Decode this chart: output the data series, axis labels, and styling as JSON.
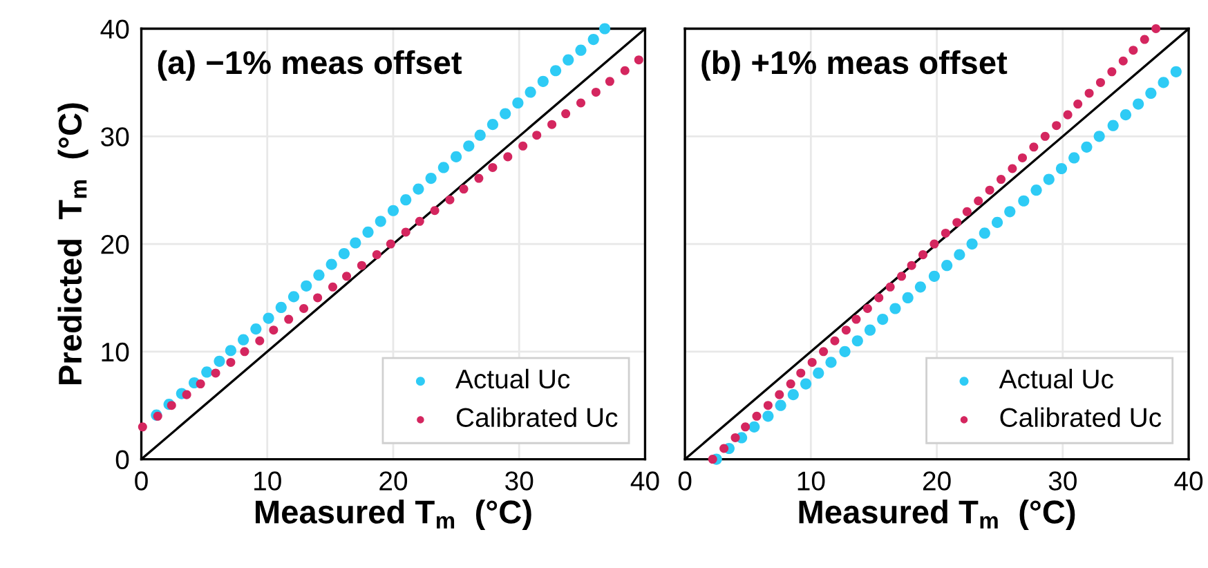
{
  "chart_data": [
    {
      "type": "scatter",
      "title": "(a) −1% meas offset",
      "xlabel": "Measured T$_{m}$  (°C)",
      "ylabel": "Predicted  T$_{m}$  (°C)",
      "xlim": [
        0,
        40
      ],
      "ylim": [
        0,
        40
      ],
      "xticks": [
        0,
        10,
        20,
        30,
        40
      ],
      "yticks": [
        0,
        10,
        20,
        30,
        40
      ],
      "grid": true,
      "legend": "bottom right",
      "series": [
        {
          "name": "Actual Uc",
          "color": "#2ecbf5",
          "marker": "circle",
          "x": [
            1.2,
            2.2,
            3.2,
            4.2,
            5.2,
            6.2,
            7.1,
            8.1,
            9.1,
            10.1,
            11.1,
            12.1,
            13.1,
            14.1,
            15.1,
            16.1,
            17.0,
            18.0,
            19.0,
            20.0,
            21.0,
            22.0,
            23.0,
            24.0,
            25.0,
            26.0,
            26.9,
            27.9,
            28.9,
            29.9,
            30.9,
            31.9,
            32.9,
            33.9,
            34.9,
            35.9,
            36.8
          ],
          "values": [
            4.1,
            5.1,
            6.1,
            7.1,
            8.1,
            9.1,
            10.1,
            11.1,
            12.1,
            13.1,
            14.1,
            15.1,
            16.1,
            17.1,
            18.1,
            19.1,
            20.1,
            21.1,
            22.1,
            23.1,
            24.1,
            25.1,
            26.1,
            27.1,
            28.1,
            29.1,
            30.1,
            31.1,
            32.1,
            33.1,
            34.1,
            35.1,
            36.1,
            37.1,
            38.0,
            39.0,
            40.0
          ]
        },
        {
          "name": "Calibrated Uc",
          "color": "#d4265f",
          "marker": "circle",
          "x": [
            0.1,
            1.3,
            2.4,
            3.6,
            4.7,
            5.9,
            7.1,
            8.2,
            9.4,
            10.5,
            11.7,
            12.9,
            14.0,
            15.2,
            16.3,
            17.5,
            18.7,
            19.8,
            21.0,
            22.1,
            23.3,
            24.5,
            25.6,
            26.8,
            27.9,
            29.1,
            30.3,
            31.4,
            32.6,
            33.7,
            34.9,
            36.1,
            37.2,
            38.4,
            39.5
          ],
          "values": [
            3.0,
            4.0,
            5.0,
            6.0,
            7.0,
            8.0,
            9.0,
            10.0,
            11.0,
            12.0,
            13.0,
            14.0,
            15.0,
            16.0,
            17.0,
            18.0,
            19.0,
            20.0,
            21.1,
            22.1,
            23.1,
            24.1,
            25.1,
            26.1,
            27.1,
            28.1,
            29.1,
            30.1,
            31.1,
            32.1,
            33.1,
            34.1,
            35.1,
            36.1,
            37.1
          ]
        },
        {
          "type": "line",
          "color": "#000000",
          "x": [
            0,
            40
          ],
          "values": [
            0,
            40
          ]
        }
      ]
    },
    {
      "type": "scatter",
      "title": "(b) +1% meas offset",
      "xlabel": "Measured T$_{m}$  (°C)",
      "xlim": [
        0,
        40
      ],
      "ylim": [
        0,
        40
      ],
      "xticks": [
        0,
        10,
        20,
        30,
        40
      ],
      "yticks": [
        0,
        10,
        20,
        30,
        40
      ],
      "tick_labels": "x",
      "grid": true,
      "legend": "bottom right",
      "series": [
        {
          "name": "Actual Uc",
          "color": "#2ecbf5",
          "marker": "circle",
          "x": [
            2.5,
            3.5,
            4.5,
            5.5,
            6.6,
            7.6,
            8.6,
            9.6,
            10.6,
            11.6,
            12.7,
            13.7,
            14.7,
            15.7,
            16.7,
            17.7,
            18.7,
            19.8,
            20.8,
            21.8,
            22.8,
            23.8,
            24.8,
            25.8,
            26.9,
            27.9,
            28.9,
            29.9,
            30.9,
            31.9,
            32.9,
            34.0,
            35.0,
            36.0,
            37.0,
            38.0,
            39.0
          ],
          "values": [
            0,
            1,
            2,
            3,
            4,
            5,
            6,
            7,
            8,
            9,
            10,
            11,
            12,
            13,
            14,
            15,
            16,
            17,
            18,
            19,
            20,
            21,
            22,
            23,
            24,
            25,
            26,
            27,
            28,
            29,
            30,
            31,
            32,
            33,
            34,
            35,
            36
          ]
        },
        {
          "name": "Calibrated Uc",
          "color": "#d4265f",
          "marker": "circle",
          "x": [
            2.2,
            3.1,
            4.0,
            4.8,
            5.7,
            6.6,
            7.5,
            8.4,
            9.2,
            10.1,
            11.0,
            11.9,
            12.8,
            13.6,
            14.5,
            15.4,
            16.3,
            17.2,
            18.0,
            18.9,
            19.8,
            20.7,
            21.6,
            22.4,
            23.3,
            24.2,
            25.1,
            26.0,
            26.8,
            27.7,
            28.6,
            29.5,
            30.4,
            31.2,
            32.1,
            33.0,
            33.9,
            34.8,
            35.6,
            36.5,
            37.4
          ],
          "values": [
            0,
            1,
            2,
            3,
            4,
            5,
            6,
            7,
            8,
            9,
            10,
            11,
            12,
            13,
            14,
            15,
            16,
            17,
            18,
            19,
            20,
            21,
            22,
            23,
            24,
            25,
            26,
            27,
            28,
            29,
            30,
            31,
            32,
            33,
            34,
            35,
            36,
            37,
            38,
            39,
            40
          ]
        },
        {
          "type": "line",
          "color": "#000000",
          "x": [
            0,
            40
          ],
          "values": [
            0,
            40
          ]
        }
      ]
    }
  ]
}
